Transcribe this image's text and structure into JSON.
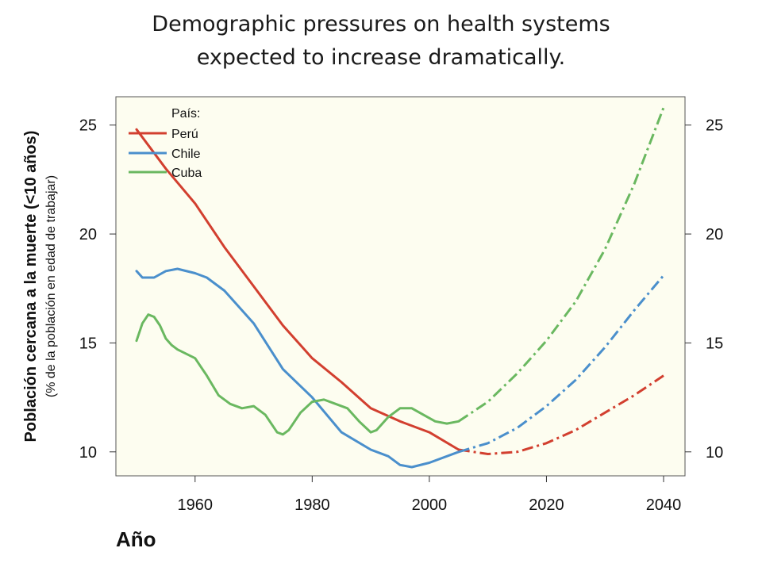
{
  "title": {
    "line1": "Demographic pressures on health systems",
    "line2": "expected to increase dramatically."
  },
  "chart_data": {
    "type": "line",
    "xlabel": "Año",
    "ylabel": "Población cercana a la muerte (<10 años)",
    "ylabel_sub": "(% de la población en edad de trabajar)",
    "xlim": [
      1950,
      2040
    ],
    "ylim": [
      8.9,
      26.3
    ],
    "xticks": [
      1960,
      1980,
      2000,
      2020,
      2040
    ],
    "yticks": [
      10,
      15,
      20,
      25
    ],
    "background_color": "#fdfdf0",
    "grid": false,
    "legend": {
      "title": "País:",
      "position": "top-left",
      "entries": [
        "Perú",
        "Chile",
        "Cuba"
      ]
    },
    "series": [
      {
        "name": "Perú",
        "color": "#d23f2f",
        "observed": [
          [
            1950,
            24.8
          ],
          [
            1955,
            23.0
          ],
          [
            1960,
            21.4
          ],
          [
            1965,
            19.4
          ],
          [
            1970,
            17.6
          ],
          [
            1975,
            15.8
          ],
          [
            1980,
            14.3
          ],
          [
            1985,
            13.2
          ],
          [
            1990,
            12.0
          ],
          [
            1995,
            11.4
          ],
          [
            2000,
            10.9
          ],
          [
            2005,
            10.1
          ]
        ],
        "projected": [
          [
            2005,
            10.1
          ],
          [
            2010,
            9.9
          ],
          [
            2015,
            10.0
          ],
          [
            2020,
            10.4
          ],
          [
            2025,
            11.0
          ],
          [
            2030,
            11.8
          ],
          [
            2035,
            12.6
          ],
          [
            2040,
            13.5
          ]
        ]
      },
      {
        "name": "Chile",
        "color": "#4a8fcc",
        "observed": [
          [
            1950,
            18.3
          ],
          [
            1951,
            18.0
          ],
          [
            1953,
            18.0
          ],
          [
            1955,
            18.3
          ],
          [
            1957,
            18.4
          ],
          [
            1960,
            18.2
          ],
          [
            1962,
            18.0
          ],
          [
            1965,
            17.4
          ],
          [
            1970,
            15.9
          ],
          [
            1975,
            13.8
          ],
          [
            1980,
            12.5
          ],
          [
            1985,
            10.9
          ],
          [
            1990,
            10.1
          ],
          [
            1993,
            9.8
          ],
          [
            1995,
            9.4
          ],
          [
            1997,
            9.3
          ],
          [
            2000,
            9.5
          ],
          [
            2005,
            10.0
          ]
        ],
        "projected": [
          [
            2005,
            10.0
          ],
          [
            2010,
            10.4
          ],
          [
            2015,
            11.1
          ],
          [
            2020,
            12.1
          ],
          [
            2025,
            13.3
          ],
          [
            2030,
            14.8
          ],
          [
            2035,
            16.5
          ],
          [
            2040,
            18.1
          ]
        ]
      },
      {
        "name": "Cuba",
        "color": "#6ab860",
        "observed": [
          [
            1950,
            15.1
          ],
          [
            1951,
            15.9
          ],
          [
            1952,
            16.3
          ],
          [
            1953,
            16.2
          ],
          [
            1954,
            15.8
          ],
          [
            1955,
            15.2
          ],
          [
            1956,
            14.9
          ],
          [
            1957,
            14.7
          ],
          [
            1960,
            14.3
          ],
          [
            1962,
            13.5
          ],
          [
            1964,
            12.6
          ],
          [
            1966,
            12.2
          ],
          [
            1968,
            12.0
          ],
          [
            1970,
            12.1
          ],
          [
            1972,
            11.7
          ],
          [
            1974,
            10.9
          ],
          [
            1975,
            10.8
          ],
          [
            1976,
            11.0
          ],
          [
            1978,
            11.8
          ],
          [
            1980,
            12.3
          ],
          [
            1982,
            12.4
          ],
          [
            1984,
            12.2
          ],
          [
            1986,
            12.0
          ],
          [
            1988,
            11.4
          ],
          [
            1990,
            10.9
          ],
          [
            1991,
            11.0
          ],
          [
            1993,
            11.6
          ],
          [
            1995,
            12.0
          ],
          [
            1997,
            12.0
          ],
          [
            1999,
            11.7
          ],
          [
            2001,
            11.4
          ],
          [
            2003,
            11.3
          ],
          [
            2005,
            11.4
          ]
        ],
        "projected": [
          [
            2005,
            11.4
          ],
          [
            2010,
            12.3
          ],
          [
            2015,
            13.6
          ],
          [
            2020,
            15.1
          ],
          [
            2025,
            16.9
          ],
          [
            2030,
            19.3
          ],
          [
            2035,
            22.3
          ],
          [
            2040,
            25.8
          ]
        ]
      }
    ]
  }
}
